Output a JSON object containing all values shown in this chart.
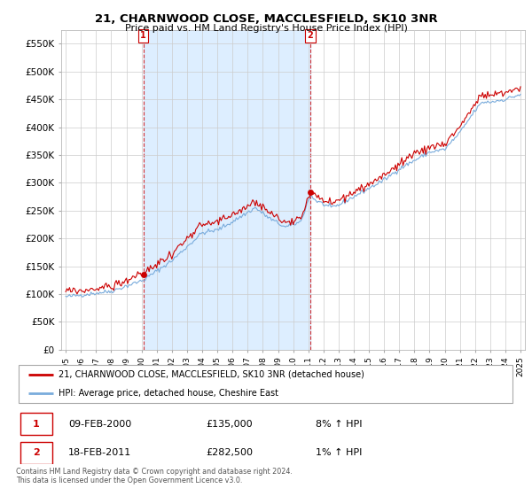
{
  "title": "21, CHARNWOOD CLOSE, MACCLESFIELD, SK10 3NR",
  "subtitle": "Price paid vs. HM Land Registry's House Price Index (HPI)",
  "legend_line1": "21, CHARNWOOD CLOSE, MACCLESFIELD, SK10 3NR (detached house)",
  "legend_line2": "HPI: Average price, detached house, Cheshire East",
  "transaction1_label": "1",
  "transaction1_date": "09-FEB-2000",
  "transaction1_price": "£135,000",
  "transaction1_hpi": "8% ↑ HPI",
  "transaction2_label": "2",
  "transaction2_date": "18-FEB-2011",
  "transaction2_price": "£282,500",
  "transaction2_hpi": "1% ↑ HPI",
  "footer": "Contains HM Land Registry data © Crown copyright and database right 2024.\nThis data is licensed under the Open Government Licence v3.0.",
  "red_color": "#cc0000",
  "blue_color": "#7aacdc",
  "shade_color": "#ddeeff",
  "transaction_box_color": "#cc0000",
  "grid_color": "#cccccc",
  "background_color": "#ffffff",
  "ylim": [
    0,
    575000
  ],
  "yticks": [
    0,
    50000,
    100000,
    150000,
    200000,
    250000,
    300000,
    350000,
    400000,
    450000,
    500000,
    550000
  ],
  "ytick_labels": [
    "£0",
    "£50K",
    "£100K",
    "£150K",
    "£200K",
    "£250K",
    "£300K",
    "£350K",
    "£400K",
    "£450K",
    "£500K",
    "£550K"
  ],
  "transaction1_x": 2000.12,
  "transaction1_y": 135000,
  "transaction2_x": 2011.13,
  "transaction2_y": 282500,
  "xtick_years": [
    1995,
    1996,
    1997,
    1998,
    1999,
    2000,
    2001,
    2002,
    2003,
    2004,
    2005,
    2006,
    2007,
    2008,
    2009,
    2010,
    2011,
    2012,
    2013,
    2014,
    2015,
    2016,
    2017,
    2018,
    2019,
    2020,
    2021,
    2022,
    2023,
    2024,
    2025
  ]
}
